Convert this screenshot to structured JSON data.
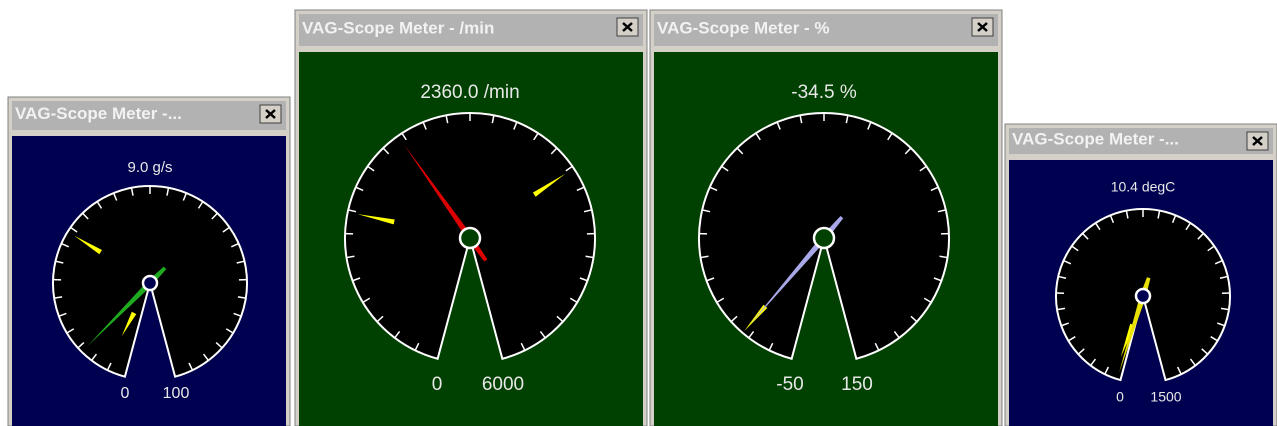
{
  "windows": [
    {
      "title": "VAG-Scope Meter -...",
      "reading": {
        "value": 9,
        "label": "9.0 g/s"
      },
      "min": 0,
      "max": 100
    },
    {
      "title": "VAG-Scope Meter - /min",
      "reading": {
        "value": 2360,
        "label": "2360.0 /min"
      },
      "min": 0,
      "max": 6000
    },
    {
      "title": "VAG-Scope Meter - %",
      "reading": {
        "value": -34.5,
        "label": "-34.5 %"
      },
      "min": -50,
      "max": 150
    },
    {
      "title": "VAG-Scope Meter -...",
      "reading": {
        "value": 10.4,
        "label": "10.4 degC"
      },
      "min": 0,
      "max": 1500
    }
  ]
}
